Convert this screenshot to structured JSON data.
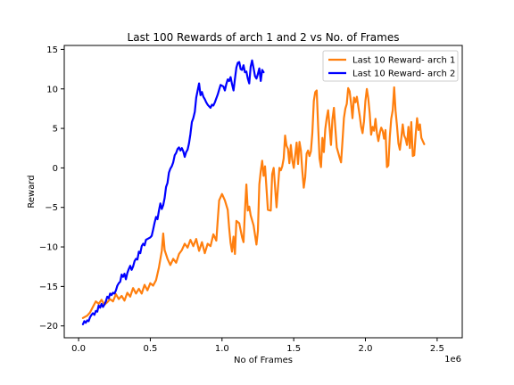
{
  "chart_data": {
    "type": "line",
    "title": "Last 100 Rewards of arch 1 and 2 vs No. of Frames",
    "xlabel": "No of Frames",
    "ylabel": "Reward",
    "x_scale_label": "1e6",
    "xlim": [
      -0.1,
      2.675
    ],
    "ylim": [
      -21.5,
      15.5
    ],
    "xticks": [
      0,
      0.5,
      1.0,
      1.5,
      2.0,
      2.5
    ],
    "xtick_labels": [
      "0.0",
      "0.5",
      "1.0",
      "1.5",
      "2.0",
      "2.5"
    ],
    "yticks": [
      -20,
      -15,
      -10,
      -5,
      0,
      5,
      10,
      15
    ],
    "ytick_labels": [
      "−20",
      "−15",
      "−10",
      "−5",
      "0",
      "5",
      "10",
      "15"
    ],
    "grid": false,
    "legend_position": "top-right",
    "series": [
      {
        "name": "Last 10 Reward- arch 1",
        "color": "#ff7f0e",
        "points": [
          [
            0.03,
            -19.0
          ],
          [
            0.06,
            -18.7
          ],
          [
            0.08,
            -18.3
          ],
          [
            0.1,
            -17.6
          ],
          [
            0.12,
            -16.9
          ],
          [
            0.14,
            -17.2
          ],
          [
            0.16,
            -16.7
          ],
          [
            0.18,
            -17.3
          ],
          [
            0.2,
            -17.0
          ],
          [
            0.22,
            -16.6
          ],
          [
            0.24,
            -16.9
          ],
          [
            0.26,
            -16.0
          ],
          [
            0.28,
            -16.6
          ],
          [
            0.3,
            -16.2
          ],
          [
            0.32,
            -16.8
          ],
          [
            0.34,
            -15.8
          ],
          [
            0.36,
            -16.3
          ],
          [
            0.38,
            -15.2
          ],
          [
            0.4,
            -15.9
          ],
          [
            0.42,
            -15.3
          ],
          [
            0.44,
            -15.9
          ],
          [
            0.46,
            -14.8
          ],
          [
            0.48,
            -15.5
          ],
          [
            0.5,
            -14.6
          ],
          [
            0.52,
            -14.9
          ],
          [
            0.54,
            -14.2
          ],
          [
            0.56,
            -12.6
          ],
          [
            0.58,
            -10.5
          ],
          [
            0.59,
            -8.3
          ],
          [
            0.6,
            -10.4
          ],
          [
            0.62,
            -11.5
          ],
          [
            0.64,
            -12.3
          ],
          [
            0.66,
            -11.5
          ],
          [
            0.68,
            -12.0
          ],
          [
            0.7,
            -10.9
          ],
          [
            0.72,
            -10.4
          ],
          [
            0.74,
            -9.6
          ],
          [
            0.76,
            -10.1
          ],
          [
            0.78,
            -9.1
          ],
          [
            0.8,
            -9.9
          ],
          [
            0.82,
            -9.0
          ],
          [
            0.84,
            -10.5
          ],
          [
            0.86,
            -9.4
          ],
          [
            0.88,
            -10.8
          ],
          [
            0.9,
            -9.6
          ],
          [
            0.92,
            -9.9
          ],
          [
            0.94,
            -8.4
          ],
          [
            0.96,
            -9.2
          ],
          [
            0.97,
            -6.6
          ],
          [
            0.98,
            -4.1
          ],
          [
            1.0,
            -3.3
          ],
          [
            1.02,
            -4.1
          ],
          [
            1.04,
            -5.3
          ],
          [
            1.05,
            -7.6
          ],
          [
            1.06,
            -9.5
          ],
          [
            1.07,
            -10.6
          ],
          [
            1.08,
            -8.7
          ],
          [
            1.09,
            -10.9
          ],
          [
            1.1,
            -6.7
          ],
          [
            1.12,
            -7.0
          ],
          [
            1.14,
            -8.8
          ],
          [
            1.15,
            -9.4
          ],
          [
            1.16,
            -5.4
          ],
          [
            1.17,
            -2.1
          ],
          [
            1.18,
            -5.4
          ],
          [
            1.19,
            -4.9
          ],
          [
            1.2,
            -6.0
          ],
          [
            1.22,
            -7.3
          ],
          [
            1.24,
            -9.7
          ],
          [
            1.25,
            -8.0
          ],
          [
            1.26,
            -2.1
          ],
          [
            1.27,
            -0.4
          ],
          [
            1.28,
            0.9
          ],
          [
            1.29,
            -1.0
          ],
          [
            1.3,
            0.2
          ],
          [
            1.32,
            -5.3
          ],
          [
            1.34,
            -5.4
          ],
          [
            1.35,
            -0.8
          ],
          [
            1.36,
            0.0
          ],
          [
            1.37,
            -2.5
          ],
          [
            1.38,
            -5.0
          ],
          [
            1.4,
            0.0
          ],
          [
            1.41,
            -0.3
          ],
          [
            1.42,
            0.2
          ],
          [
            1.43,
            1.2
          ],
          [
            1.44,
            4.1
          ],
          [
            1.45,
            2.8
          ],
          [
            1.46,
            2.4
          ],
          [
            1.47,
            0.6
          ],
          [
            1.48,
            2.9
          ],
          [
            1.49,
            1.0
          ],
          [
            1.5,
            0.0
          ],
          [
            1.52,
            3.2
          ],
          [
            1.53,
            0.5
          ],
          [
            1.54,
            3.3
          ],
          [
            1.55,
            2.2
          ],
          [
            1.56,
            -0.4
          ],
          [
            1.57,
            -2.5
          ],
          [
            1.58,
            -1.2
          ],
          [
            1.59,
            1.8
          ],
          [
            1.6,
            2.2
          ],
          [
            1.61,
            1.5
          ],
          [
            1.62,
            2.1
          ],
          [
            1.63,
            4.4
          ],
          [
            1.64,
            8.5
          ],
          [
            1.65,
            9.6
          ],
          [
            1.66,
            9.8
          ],
          [
            1.67,
            5.3
          ],
          [
            1.68,
            1.2
          ],
          [
            1.69,
            0.1
          ],
          [
            1.7,
            3.8
          ],
          [
            1.71,
            2.0
          ],
          [
            1.72,
            4.9
          ],
          [
            1.73,
            6.3
          ],
          [
            1.74,
            7.3
          ],
          [
            1.75,
            5.2
          ],
          [
            1.76,
            2.9
          ],
          [
            1.77,
            6.1
          ],
          [
            1.78,
            7.6
          ],
          [
            1.79,
            5.0
          ],
          [
            1.8,
            2.6
          ],
          [
            1.82,
            1.3
          ],
          [
            1.83,
            0.7
          ],
          [
            1.84,
            3.4
          ],
          [
            1.85,
            6.3
          ],
          [
            1.86,
            7.5
          ],
          [
            1.87,
            8.1
          ],
          [
            1.88,
            10.1
          ],
          [
            1.89,
            9.7
          ],
          [
            1.9,
            8.2
          ],
          [
            1.91,
            6.3
          ],
          [
            1.92,
            8.9
          ],
          [
            1.93,
            8.3
          ],
          [
            1.94,
            9.0
          ],
          [
            1.95,
            7.8
          ],
          [
            1.96,
            6.6
          ],
          [
            1.97,
            5.2
          ],
          [
            1.98,
            4.4
          ],
          [
            1.99,
            5.9
          ],
          [
            2.0,
            8.5
          ],
          [
            2.01,
            10.0
          ],
          [
            2.02,
            8.8
          ],
          [
            2.03,
            6.9
          ],
          [
            2.04,
            4.2
          ],
          [
            2.05,
            5.2
          ],
          [
            2.06,
            4.7
          ],
          [
            2.07,
            6.2
          ],
          [
            2.08,
            4.4
          ],
          [
            2.09,
            3.4
          ],
          [
            2.1,
            4.4
          ],
          [
            2.11,
            5.1
          ],
          [
            2.12,
            4.7
          ],
          [
            2.13,
            3.7
          ],
          [
            2.14,
            4.8
          ],
          [
            2.15,
            0.1
          ],
          [
            2.16,
            0.3
          ],
          [
            2.17,
            3.9
          ],
          [
            2.18,
            6.2
          ],
          [
            2.19,
            7.3
          ],
          [
            2.2,
            10.2
          ],
          [
            2.21,
            7.2
          ],
          [
            2.22,
            5.3
          ],
          [
            2.23,
            3.1
          ],
          [
            2.24,
            2.3
          ],
          [
            2.25,
            3.8
          ],
          [
            2.26,
            5.5
          ],
          [
            2.27,
            4.1
          ],
          [
            2.28,
            3.7
          ],
          [
            2.29,
            2.9
          ],
          [
            2.3,
            5.2
          ],
          [
            2.31,
            2.5
          ],
          [
            2.32,
            5.8
          ],
          [
            2.33,
            1.5
          ],
          [
            2.34,
            1.6
          ],
          [
            2.35,
            4.2
          ],
          [
            2.36,
            6.3
          ],
          [
            2.37,
            4.8
          ],
          [
            2.38,
            5.5
          ],
          [
            2.39,
            3.8
          ],
          [
            2.4,
            3.4
          ],
          [
            2.41,
            3.0
          ]
        ]
      },
      {
        "name": "Last 10 Reward- arch 2",
        "color": "#0000ff",
        "points": [
          [
            0.03,
            -19.8
          ],
          [
            0.04,
            -19.4
          ],
          [
            0.05,
            -19.6
          ],
          [
            0.06,
            -19.3
          ],
          [
            0.07,
            -19.4
          ],
          [
            0.08,
            -18.9
          ],
          [
            0.09,
            -18.6
          ],
          [
            0.1,
            -18.4
          ],
          [
            0.11,
            -18.6
          ],
          [
            0.12,
            -18.1
          ],
          [
            0.13,
            -18.2
          ],
          [
            0.14,
            -17.4
          ],
          [
            0.15,
            -17.7
          ],
          [
            0.16,
            -17.2
          ],
          [
            0.17,
            -17.6
          ],
          [
            0.18,
            -17.3
          ],
          [
            0.19,
            -16.9
          ],
          [
            0.2,
            -16.3
          ],
          [
            0.21,
            -16.5
          ],
          [
            0.22,
            -15.9
          ],
          [
            0.23,
            -16.1
          ],
          [
            0.24,
            -15.8
          ],
          [
            0.25,
            -15.9
          ],
          [
            0.26,
            -15.5
          ],
          [
            0.27,
            -14.9
          ],
          [
            0.28,
            -14.6
          ],
          [
            0.29,
            -14.4
          ],
          [
            0.3,
            -13.5
          ],
          [
            0.31,
            -13.8
          ],
          [
            0.32,
            -13.4
          ],
          [
            0.33,
            -14.1
          ],
          [
            0.34,
            -13.3
          ],
          [
            0.35,
            -12.8
          ],
          [
            0.36,
            -12.4
          ],
          [
            0.37,
            -12.9
          ],
          [
            0.38,
            -12.5
          ],
          [
            0.39,
            -11.8
          ],
          [
            0.4,
            -11.5
          ],
          [
            0.41,
            -11.6
          ],
          [
            0.42,
            -10.6
          ],
          [
            0.43,
            -10.8
          ],
          [
            0.44,
            -9.9
          ],
          [
            0.45,
            -9.6
          ],
          [
            0.46,
            -9.8
          ],
          [
            0.47,
            -9.1
          ],
          [
            0.48,
            -9.0
          ],
          [
            0.49,
            -8.9
          ],
          [
            0.5,
            -8.8
          ],
          [
            0.51,
            -8.6
          ],
          [
            0.52,
            -7.8
          ],
          [
            0.53,
            -6.9
          ],
          [
            0.54,
            -6.2
          ],
          [
            0.55,
            -6.5
          ],
          [
            0.56,
            -5.4
          ],
          [
            0.57,
            -4.5
          ],
          [
            0.58,
            -5.2
          ],
          [
            0.59,
            -4.7
          ],
          [
            0.6,
            -3.8
          ],
          [
            0.61,
            -2.4
          ],
          [
            0.62,
            -1.9
          ],
          [
            0.63,
            -0.6
          ],
          [
            0.64,
            -0.1
          ],
          [
            0.65,
            0.2
          ],
          [
            0.66,
            0.7
          ],
          [
            0.67,
            1.6
          ],
          [
            0.68,
            1.9
          ],
          [
            0.69,
            2.4
          ],
          [
            0.7,
            2.6
          ],
          [
            0.71,
            2.2
          ],
          [
            0.72,
            2.5
          ],
          [
            0.73,
            2.1
          ],
          [
            0.74,
            1.4
          ],
          [
            0.75,
            2.0
          ],
          [
            0.76,
            2.3
          ],
          [
            0.77,
            3.1
          ],
          [
            0.78,
            4.3
          ],
          [
            0.79,
            5.8
          ],
          [
            0.8,
            6.3
          ],
          [
            0.81,
            7.1
          ],
          [
            0.82,
            8.9
          ],
          [
            0.83,
            9.8
          ],
          [
            0.84,
            10.7
          ],
          [
            0.85,
            9.2
          ],
          [
            0.86,
            9.6
          ],
          [
            0.87,
            9.0
          ],
          [
            0.88,
            8.7
          ],
          [
            0.89,
            8.3
          ],
          [
            0.9,
            8.0
          ],
          [
            0.91,
            7.8
          ],
          [
            0.92,
            7.6
          ],
          [
            0.93,
            8.0
          ],
          [
            0.94,
            7.9
          ],
          [
            0.95,
            8.3
          ],
          [
            0.96,
            8.8
          ],
          [
            0.97,
            9.3
          ],
          [
            0.98,
            9.9
          ],
          [
            0.99,
            10.5
          ],
          [
            1.0,
            10.4
          ],
          [
            1.01,
            10.3
          ],
          [
            1.02,
            9.8
          ],
          [
            1.03,
            10.6
          ],
          [
            1.04,
            11.2
          ],
          [
            1.05,
            11.0
          ],
          [
            1.06,
            11.5
          ],
          [
            1.07,
            10.6
          ],
          [
            1.08,
            9.8
          ],
          [
            1.09,
            11.3
          ],
          [
            1.1,
            12.7
          ],
          [
            1.11,
            13.3
          ],
          [
            1.12,
            13.4
          ],
          [
            1.13,
            12.5
          ],
          [
            1.14,
            12.4
          ],
          [
            1.15,
            13.0
          ],
          [
            1.16,
            12.1
          ],
          [
            1.17,
            12.2
          ],
          [
            1.18,
            11.3
          ],
          [
            1.19,
            10.7
          ],
          [
            1.2,
            12.8
          ],
          [
            1.21,
            13.6
          ],
          [
            1.22,
            12.6
          ],
          [
            1.23,
            11.6
          ],
          [
            1.24,
            11.3
          ],
          [
            1.25,
            11.9
          ],
          [
            1.26,
            12.6
          ],
          [
            1.27,
            11.0
          ],
          [
            1.28,
            12.4
          ],
          [
            1.29,
            12.1
          ]
        ]
      }
    ]
  }
}
